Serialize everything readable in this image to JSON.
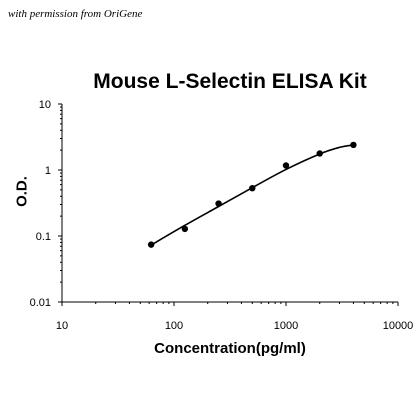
{
  "credit": "with permission from OriGene",
  "chart_data": {
    "type": "scatter",
    "title": "Mouse L-Selectin ELISA Kit",
    "xlabel": "Concentration(pg/ml)",
    "ylabel": "O.D.",
    "xscale": "log",
    "yscale": "log",
    "xlim": [
      10,
      10000
    ],
    "ylim": [
      0.01,
      10
    ],
    "xticks": [
      "10",
      "100",
      "1000",
      "10000"
    ],
    "yticks": [
      "0.01",
      "0.1",
      "1",
      "10"
    ],
    "grid": false,
    "legend": "none",
    "series": [
      {
        "points": [
          {
            "x": 62.5,
            "y": 0.074
          },
          {
            "x": 125,
            "y": 0.128
          },
          {
            "x": 250,
            "y": 0.31
          },
          {
            "x": 500,
            "y": 0.53
          },
          {
            "x": 1000,
            "y": 1.17
          },
          {
            "x": 2000,
            "y": 1.78
          },
          {
            "x": 4000,
            "y": 2.4
          }
        ],
        "curve": [
          {
            "x": 62.5,
            "y": 0.073
          },
          {
            "x": 125,
            "y": 0.145
          },
          {
            "x": 250,
            "y": 0.28
          },
          {
            "x": 500,
            "y": 0.54
          },
          {
            "x": 1000,
            "y": 1.02
          },
          {
            "x": 2000,
            "y": 1.75
          },
          {
            "x": 3000,
            "y": 2.2
          },
          {
            "x": 4000,
            "y": 2.4
          }
        ],
        "color": "#000000"
      }
    ]
  }
}
